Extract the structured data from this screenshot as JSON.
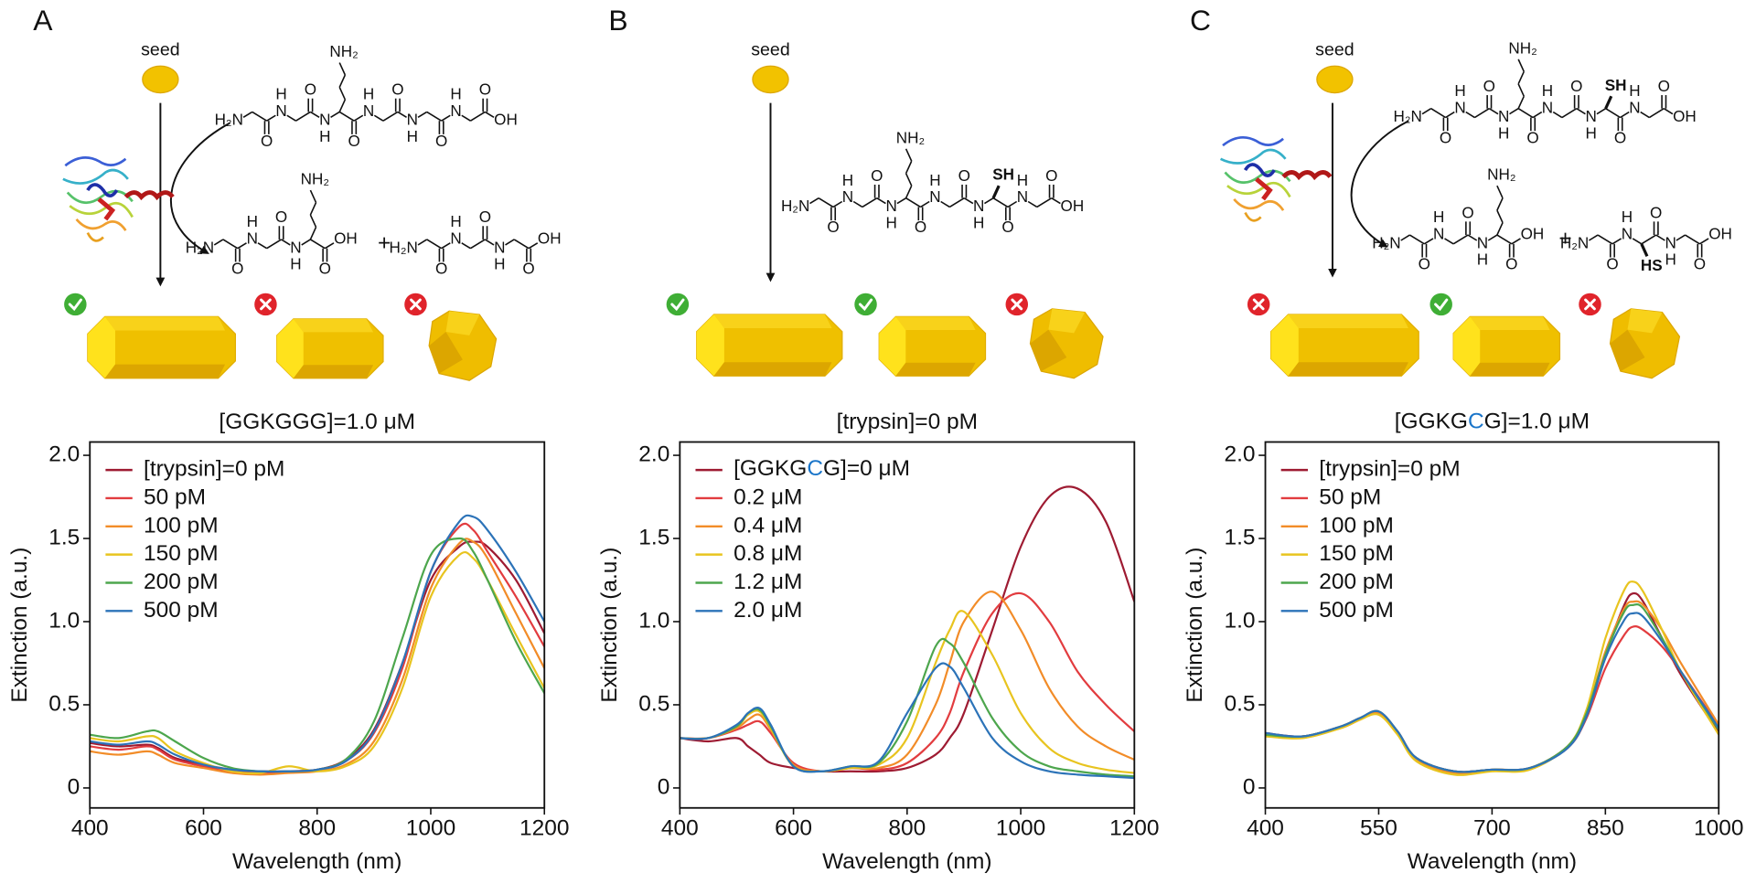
{
  "schematics": [
    {
      "label": "A",
      "seed": "seed",
      "plus": "+",
      "molecules": [
        {
          "n_term": "H₂N",
          "c_term": "OH",
          "nh": [
            "N",
            "N",
            "N",
            "N",
            "N"
          ],
          "h": [
            "H",
            "H",
            "H",
            "H",
            "H"
          ],
          "o": [
            "O",
            "O",
            "O",
            "O",
            "O",
            "O"
          ],
          "side": [
            {
              "residue": 2,
              "text": "NH₂",
              "carbons": 4,
              "color": "#111111"
            }
          ]
        },
        {
          "n_term": "H₂N",
          "c_term": "OH",
          "nh": [
            "N",
            "N"
          ],
          "h": [
            "H",
            "H"
          ],
          "o": [
            "O",
            "O",
            "O"
          ],
          "side": [
            {
              "residue": 2,
              "text": "NH₂",
              "carbons": 4,
              "color": "#111111"
            }
          ]
        },
        {
          "n_term": "H₂N",
          "c_term": "OH",
          "nh": [
            "N",
            "N"
          ],
          "h": [
            "H",
            "H"
          ],
          "o": [
            "O",
            "O",
            "O"
          ],
          "side": []
        }
      ]
    },
    {
      "label": "B",
      "seed": "seed",
      "molecules": [
        {
          "n_term": "H₂N",
          "c_term": "OH",
          "nh": [
            "N",
            "N",
            "N",
            "N",
            "N"
          ],
          "h": [
            "H",
            "H",
            "H",
            "H",
            "H"
          ],
          "o": [
            "O",
            "O",
            "O",
            "O",
            "O",
            "O"
          ],
          "side": [
            {
              "residue": 2,
              "text": "NH₂",
              "carbons": 4,
              "color": "#111111"
            },
            {
              "residue": 4,
              "text": "SH",
              "carbons": 1,
              "color": "#1a75c9"
            }
          ]
        }
      ]
    },
    {
      "label": "C",
      "seed": "seed",
      "plus": "+",
      "molecules": [
        {
          "n_term": "H₂N",
          "c_term": "OH",
          "nh": [
            "N",
            "N",
            "N",
            "N",
            "N"
          ],
          "h": [
            "H",
            "H",
            "H",
            "H",
            "H"
          ],
          "o": [
            "O",
            "O",
            "O",
            "O",
            "O",
            "O"
          ],
          "side": [
            {
              "residue": 2,
              "text": "NH₂",
              "carbons": 4,
              "color": "#111111"
            },
            {
              "residue": 4,
              "text": "SH",
              "carbons": 1,
              "color": "#1a75c9"
            }
          ]
        },
        {
          "n_term": "H₂N",
          "c_term": "OH",
          "nh": [
            "N",
            "N"
          ],
          "h": [
            "H",
            "H"
          ],
          "o": [
            "O",
            "O",
            "O"
          ],
          "side": [
            {
              "residue": 2,
              "text": "NH₂",
              "carbons": 4,
              "color": "#111111"
            }
          ]
        },
        {
          "n_term": "H₂N",
          "c_term": "OH",
          "nh": [
            "N",
            "N"
          ],
          "h": [
            "H",
            "H"
          ],
          "o": [
            "O",
            "O",
            "O"
          ],
          "side": [
            {
              "residue": 1,
              "text": "HS",
              "carbons": 1,
              "color": "#1a75c9"
            }
          ]
        }
      ]
    }
  ],
  "chart_data": [
    {
      "type": "line",
      "title": "[GGKGGG]=1.0 μM",
      "xlabel": "Wavelength (nm)",
      "ylabel": "Extinction (a.u.)",
      "legend": "upper left",
      "x": [
        400,
        450,
        500,
        520,
        550,
        600,
        650,
        700,
        750,
        800,
        850,
        900,
        950,
        1000,
        1050,
        1075,
        1100,
        1150,
        1200
      ],
      "xlim": [
        400,
        1200
      ],
      "xticks": [
        400,
        600,
        800,
        1000,
        1200
      ],
      "ylim": [
        -0.12,
        2.08
      ],
      "yticks": [
        0,
        0.5,
        {
          "value": 1,
          "label": "1.0"
        },
        1.5,
        {
          "value": 2,
          "label": "2.0"
        }
      ],
      "series": [
        {
          "name": "[trypsin]=0 pM",
          "color": "#9e1b32",
          "values": [
            0.27,
            0.25,
            0.26,
            0.24,
            0.18,
            0.14,
            0.11,
            0.1,
            0.1,
            0.11,
            0.17,
            0.35,
            0.75,
            1.25,
            1.45,
            1.48,
            1.45,
            1.25,
            0.93
          ]
        },
        {
          "name": "50 pM",
          "color": "#e23c3f",
          "values": [
            0.25,
            0.23,
            0.25,
            0.23,
            0.17,
            0.13,
            0.1,
            0.09,
            0.1,
            0.11,
            0.16,
            0.33,
            0.72,
            1.3,
            1.57,
            1.55,
            1.42,
            1.15,
            0.85
          ]
        },
        {
          "name": "100 pM",
          "color": "#f28c28",
          "values": [
            0.22,
            0.2,
            0.22,
            0.2,
            0.15,
            0.12,
            0.09,
            0.08,
            0.09,
            0.1,
            0.14,
            0.28,
            0.65,
            1.2,
            1.47,
            1.48,
            1.38,
            1.05,
            0.72
          ]
        },
        {
          "name": "150 pM",
          "color": "#e8c41f",
          "values": [
            0.3,
            0.28,
            0.31,
            0.3,
            0.22,
            0.15,
            0.1,
            0.09,
            0.13,
            0.1,
            0.13,
            0.25,
            0.6,
            1.15,
            1.4,
            1.38,
            1.25,
            0.92,
            0.6
          ]
        },
        {
          "name": "200 pM",
          "color": "#4da64d",
          "values": [
            0.32,
            0.3,
            0.34,
            0.34,
            0.28,
            0.18,
            0.12,
            0.1,
            0.1,
            0.11,
            0.17,
            0.4,
            0.9,
            1.4,
            1.5,
            1.42,
            1.25,
            0.88,
            0.57
          ]
        },
        {
          "name": "500 pM",
          "color": "#2c73b8",
          "values": [
            0.28,
            0.26,
            0.28,
            0.26,
            0.2,
            0.14,
            0.11,
            0.1,
            0.1,
            0.11,
            0.16,
            0.34,
            0.75,
            1.3,
            1.6,
            1.63,
            1.55,
            1.3,
            1.0
          ]
        }
      ]
    },
    {
      "type": "line",
      "title": "[trypsin]=0 pM",
      "xlabel": "Wavelength (nm)",
      "ylabel": "Extinction (a.u.)",
      "legend": "upper left",
      "x": [
        400,
        450,
        500,
        520,
        540,
        560,
        600,
        650,
        700,
        750,
        800,
        850,
        875,
        900,
        950,
        1000,
        1050,
        1100,
        1150,
        1200
      ],
      "xlim": [
        400,
        1200
      ],
      "xticks": [
        400,
        600,
        800,
        1000,
        1200
      ],
      "ylim": [
        -0.12,
        2.08
      ],
      "yticks": [
        0,
        0.5,
        {
          "value": 1,
          "label": "1.0"
        },
        1.5,
        {
          "value": 2,
          "label": "2.0"
        }
      ],
      "series": [
        {
          "name": {
            "parts": [
              "[GGKG",
              "C",
              "G]=0 μM"
            ],
            "colors": [
              "#111111",
              "#1a75c9",
              "#111111"
            ]
          },
          "color": "#9e1b32",
          "values": [
            0.3,
            0.28,
            0.3,
            0.25,
            0.2,
            0.15,
            0.12,
            0.1,
            0.1,
            0.1,
            0.12,
            0.2,
            0.3,
            0.45,
            0.95,
            1.45,
            1.75,
            1.8,
            1.6,
            1.12
          ]
        },
        {
          "name": "0.2 μM",
          "color": "#e23c3f",
          "values": [
            0.3,
            0.3,
            0.35,
            0.38,
            0.4,
            0.33,
            0.15,
            0.1,
            0.12,
            0.11,
            0.15,
            0.3,
            0.45,
            0.7,
            1.05,
            1.17,
            1.0,
            0.7,
            0.5,
            0.34
          ]
        },
        {
          "name": "0.4 μM",
          "color": "#f28c28",
          "values": [
            0.3,
            0.3,
            0.36,
            0.41,
            0.44,
            0.35,
            0.14,
            0.1,
            0.12,
            0.12,
            0.2,
            0.5,
            0.75,
            1.0,
            1.18,
            0.95,
            0.6,
            0.37,
            0.25,
            0.17
          ]
        },
        {
          "name": "0.8 μM",
          "color": "#e8c41f",
          "values": [
            0.3,
            0.3,
            0.37,
            0.44,
            0.46,
            0.36,
            0.13,
            0.1,
            0.12,
            0.14,
            0.3,
            0.75,
            0.95,
            1.06,
            0.8,
            0.45,
            0.24,
            0.15,
            0.11,
            0.09
          ]
        },
        {
          "name": "1.2 μM",
          "color": "#4da64d",
          "values": [
            0.3,
            0.3,
            0.37,
            0.45,
            0.47,
            0.37,
            0.13,
            0.1,
            0.13,
            0.15,
            0.4,
            0.85,
            0.87,
            0.75,
            0.42,
            0.22,
            0.13,
            0.1,
            0.08,
            0.07
          ]
        },
        {
          "name": "2.0 μM",
          "color": "#2c73b8",
          "values": [
            0.3,
            0.3,
            0.38,
            0.45,
            0.48,
            0.38,
            0.13,
            0.1,
            0.13,
            0.16,
            0.45,
            0.72,
            0.73,
            0.6,
            0.3,
            0.16,
            0.1,
            0.08,
            0.07,
            0.06
          ]
        }
      ]
    },
    {
      "type": "line",
      "title": {
        "parts": [
          "[GGKG",
          "C",
          "G]=1.0 μM"
        ],
        "colors": [
          "#111111",
          "#1a75c9",
          "#111111"
        ]
      },
      "xlabel": "Wavelength (nm)",
      "ylabel": "Extinction (a.u.)",
      "legend": "upper left",
      "x": [
        400,
        450,
        500,
        525,
        550,
        575,
        600,
        650,
        700,
        750,
        800,
        825,
        850,
        875,
        887,
        900,
        925,
        950,
        1000
      ],
      "xlim": [
        400,
        1000
      ],
      "xticks": [
        400,
        550,
        700,
        850,
        1000
      ],
      "ylim": [
        -0.12,
        2.08
      ],
      "yticks": [
        0,
        0.5,
        {
          "value": 1,
          "label": "1.0"
        },
        1.5,
        {
          "value": 2,
          "label": "2.0"
        }
      ],
      "series": [
        {
          "name": "[trypsin]=0 pM",
          "color": "#9e1b32",
          "values": [
            0.33,
            0.31,
            0.37,
            0.42,
            0.45,
            0.34,
            0.18,
            0.1,
            0.11,
            0.12,
            0.25,
            0.45,
            0.8,
            1.1,
            1.17,
            1.12,
            0.9,
            0.68,
            0.33
          ]
        },
        {
          "name": "50 pM",
          "color": "#e23c3f",
          "values": [
            0.32,
            0.31,
            0.37,
            0.42,
            0.46,
            0.34,
            0.18,
            0.1,
            0.11,
            0.12,
            0.24,
            0.42,
            0.72,
            0.92,
            0.97,
            0.95,
            0.85,
            0.7,
            0.37
          ]
        },
        {
          "name": "100 pM",
          "color": "#f28c28",
          "values": [
            0.32,
            0.31,
            0.36,
            0.41,
            0.45,
            0.33,
            0.17,
            0.09,
            0.11,
            0.12,
            0.25,
            0.45,
            0.82,
            1.08,
            1.12,
            1.1,
            0.95,
            0.75,
            0.38
          ]
        },
        {
          "name": "150 pM",
          "color": "#e8c41f",
          "values": [
            0.31,
            0.3,
            0.36,
            0.41,
            0.44,
            0.32,
            0.16,
            0.08,
            0.1,
            0.11,
            0.25,
            0.47,
            0.9,
            1.19,
            1.24,
            1.18,
            0.95,
            0.7,
            0.32
          ]
        },
        {
          "name": "200 pM",
          "color": "#4da64d",
          "values": [
            0.32,
            0.31,
            0.37,
            0.42,
            0.46,
            0.34,
            0.18,
            0.1,
            0.11,
            0.12,
            0.25,
            0.45,
            0.8,
            1.06,
            1.1,
            1.08,
            0.9,
            0.7,
            0.35
          ]
        },
        {
          "name": "500 pM",
          "color": "#2c73b8",
          "values": [
            0.33,
            0.31,
            0.37,
            0.42,
            0.46,
            0.34,
            0.18,
            0.1,
            0.11,
            0.12,
            0.24,
            0.43,
            0.78,
            1.01,
            1.05,
            1.03,
            0.88,
            0.7,
            0.36
          ]
        }
      ]
    }
  ]
}
